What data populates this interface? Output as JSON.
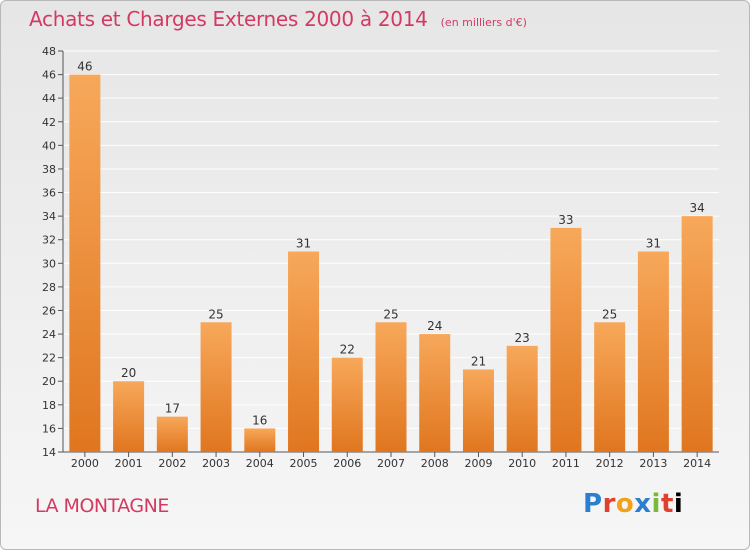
{
  "header": {
    "title": "Achats et Charges Externes 2000 à 2014",
    "subtitle": "(en milliers d'€)"
  },
  "footer": {
    "place_name": "LA MONTAGNE",
    "logo_text": "Proxiti"
  },
  "colors": {
    "title": "#d33a63",
    "bar_light": "#f7a85a",
    "bar_dark": "#e0761f",
    "grid": "#ffffff"
  },
  "chart_data": {
    "type": "bar",
    "title": "Achats et Charges Externes 2000 à 2014",
    "subtitle": "(en milliers d'€)",
    "xlabel": "",
    "ylabel": "",
    "ylim": [
      14,
      48
    ],
    "ytick_step": 2,
    "grid": true,
    "categories": [
      "2000",
      "2001",
      "2002",
      "2003",
      "2004",
      "2005",
      "2006",
      "2007",
      "2008",
      "2009",
      "2010",
      "2011",
      "2012",
      "2013",
      "2014"
    ],
    "values": [
      46,
      20,
      17,
      25,
      16,
      31,
      22,
      25,
      24,
      21,
      23,
      33,
      25,
      31,
      34
    ]
  }
}
